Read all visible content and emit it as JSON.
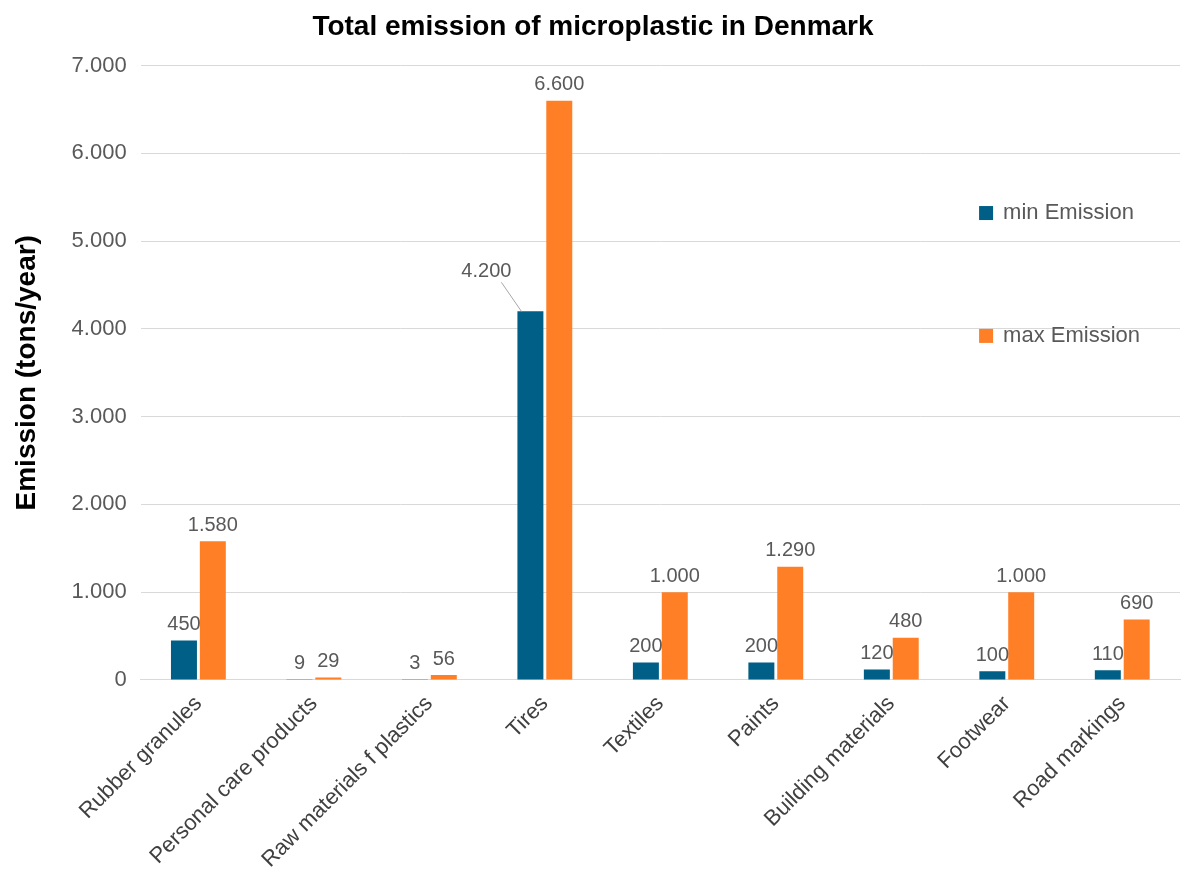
{
  "chart_data": {
    "type": "bar",
    "title": "Total emission of microplastic in Denmark",
    "ylabel": "Emission (tons/year)",
    "categories": [
      "Rubber granules",
      "Personal care products",
      "Raw materials f plastics",
      "Tires",
      "Textiles",
      "Paints",
      "Building materials",
      "Footwear",
      "Road markings"
    ],
    "series": [
      {
        "name": "min Emission",
        "color": "#005f87",
        "values": [
          450,
          9,
          3,
          4200,
          200,
          200,
          120,
          100,
          110
        ],
        "value_labels": [
          "450",
          "9",
          "3",
          "4.200",
          "200",
          "200",
          "120",
          "100",
          "110"
        ]
      },
      {
        "name": "max Emission",
        "color": "#ff7f27",
        "values": [
          1580,
          29,
          56,
          6600,
          1000,
          1290,
          480,
          1000,
          690
        ],
        "value_labels": [
          "1.580",
          "29",
          "56",
          "6.600",
          "1.000",
          "1.290",
          "480",
          "1.000",
          "690"
        ]
      }
    ],
    "ylim": [
      0,
      7000
    ],
    "yticks": [
      0,
      {
        "value": 1000,
        "label": "1.000"
      },
      {
        "value": 2000,
        "label": "2.000"
      },
      {
        "value": 3000,
        "label": "3.000"
      },
      {
        "value": 4000,
        "label": "4.000"
      },
      {
        "value": 5000,
        "label": "5.000"
      },
      {
        "value": 6000,
        "label": "6.000"
      },
      {
        "value": 7000,
        "label": "7.000"
      }
    ],
    "grid": true,
    "legend": "right",
    "data_labels": true
  }
}
